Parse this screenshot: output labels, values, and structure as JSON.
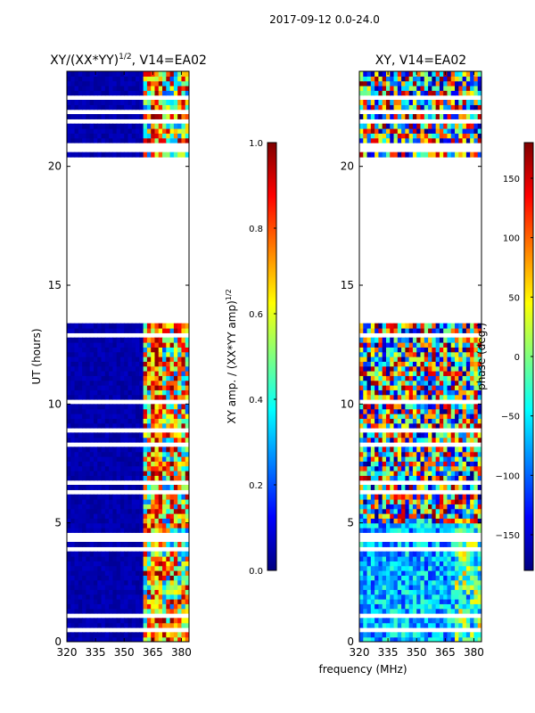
{
  "figure_title": "2017-09-12 0.0-24.0",
  "colors": {
    "jet": [
      "#00007f",
      "#0000ff",
      "#0080ff",
      "#00ffff",
      "#7fff7f",
      "#ffff00",
      "#ff8000",
      "#ff0000",
      "#7f0000"
    ],
    "background": "#ffffff",
    "axis": "#000000"
  },
  "chart_data": [
    {
      "type": "heatmap",
      "title": "XY/(XX*YY)^1/2, V14=EA02",
      "title_main": "XY/(XX*YY)",
      "title_exp": "1/2",
      "title_tail": ", V14=EA02",
      "xlabel": "",
      "ylabel": "UT (hours)",
      "xlim": [
        320,
        384
      ],
      "ylim": [
        0,
        24
      ],
      "xticks": [
        320,
        335,
        350,
        365,
        380
      ],
      "yticks": [
        0,
        5,
        10,
        15,
        20
      ],
      "gaps_hours": [
        [
          0.15,
          0.25
        ],
        [
          0.45,
          0.55
        ],
        [
          1.1,
          1.2
        ],
        [
          1.55,
          1.65
        ],
        [
          1.95,
          2.05
        ],
        [
          2.15,
          2.3
        ],
        [
          2.8,
          2.85
        ],
        [
          3.9,
          4.0
        ],
        [
          4.25,
          4.35
        ],
        [
          4.45,
          4.55
        ],
        [
          5.6,
          5.68
        ],
        [
          6.3,
          6.35
        ],
        [
          6.6,
          6.9
        ],
        [
          7.55,
          7.6
        ],
        [
          8.2,
          8.3
        ],
        [
          8.6,
          8.65
        ],
        [
          8.85,
          8.95
        ],
        [
          9.2,
          9.3
        ],
        [
          9.55,
          9.6
        ],
        [
          10.1,
          10.15
        ],
        [
          10.55,
          10.65
        ],
        [
          10.95,
          11.05
        ],
        [
          11.3,
          11.4
        ],
        [
          11.75,
          11.85
        ],
        [
          12.15,
          12.25
        ],
        [
          12.6,
          12.65
        ],
        [
          12.85,
          12.95
        ],
        [
          13.15,
          13.25
        ],
        [
          13.45,
          20.45
        ],
        [
          20.65,
          20.75
        ],
        [
          20.9,
          21.05
        ],
        [
          21.35,
          21.5
        ],
        [
          21.8,
          22.05
        ],
        [
          22.3,
          22.4
        ],
        [
          22.55,
          22.65
        ],
        [
          22.85,
          22.95
        ],
        [
          23.35,
          23.5
        ]
      ],
      "colorbar": {
        "label": "XY amp. / (XX*YY amp)^1/2",
        "label_main": "XY amp. / (XX*YY amp)",
        "label_exp": "1/2",
        "range": [
          0.0,
          1.0
        ],
        "ticks": [
          0.0,
          0.2,
          0.4,
          0.6,
          0.8,
          1.0
        ],
        "tick_labels": [
          "0.0",
          "0.2",
          "0.4",
          "0.6",
          "0.8",
          "1.0"
        ]
      }
    },
    {
      "type": "heatmap",
      "title": "XY, V14=EA02",
      "xlabel": "frequency (MHz)",
      "ylabel": "",
      "xlim": [
        320,
        384
      ],
      "ylim": [
        0,
        24
      ],
      "xticks": [
        320,
        335,
        350,
        365,
        380
      ],
      "yticks": [
        0,
        5,
        10,
        15,
        20
      ],
      "gaps_hours": [
        [
          0.15,
          0.25
        ],
        [
          0.45,
          0.55
        ],
        [
          1.1,
          1.2
        ],
        [
          1.55,
          1.65
        ],
        [
          1.95,
          2.05
        ],
        [
          2.15,
          2.3
        ],
        [
          2.8,
          2.85
        ],
        [
          3.9,
          4.0
        ],
        [
          4.25,
          4.35
        ],
        [
          4.45,
          4.55
        ],
        [
          5.6,
          5.68
        ],
        [
          6.3,
          6.35
        ],
        [
          6.6,
          6.9
        ],
        [
          7.55,
          7.6
        ],
        [
          8.2,
          8.3
        ],
        [
          8.6,
          8.65
        ],
        [
          8.85,
          8.95
        ],
        [
          9.2,
          9.3
        ],
        [
          9.55,
          9.6
        ],
        [
          10.1,
          10.15
        ],
        [
          10.55,
          10.65
        ],
        [
          10.95,
          11.05
        ],
        [
          11.3,
          11.4
        ],
        [
          11.75,
          11.85
        ],
        [
          12.15,
          12.25
        ],
        [
          12.6,
          12.65
        ],
        [
          12.85,
          12.95
        ],
        [
          13.15,
          13.25
        ],
        [
          13.45,
          20.45
        ],
        [
          20.65,
          20.75
        ],
        [
          20.9,
          21.05
        ],
        [
          21.35,
          21.5
        ],
        [
          21.8,
          22.05
        ],
        [
          22.3,
          22.4
        ],
        [
          22.55,
          22.65
        ],
        [
          22.85,
          22.95
        ],
        [
          23.35,
          23.5
        ]
      ],
      "colorbar": {
        "label": "phase (deg.)",
        "range": [
          -180,
          180
        ],
        "ticks": [
          -150,
          -100,
          -50,
          0,
          50,
          100,
          150
        ],
        "tick_labels": [
          "−150",
          "−100",
          "−50",
          "0",
          "50",
          "100",
          "150"
        ]
      }
    }
  ]
}
